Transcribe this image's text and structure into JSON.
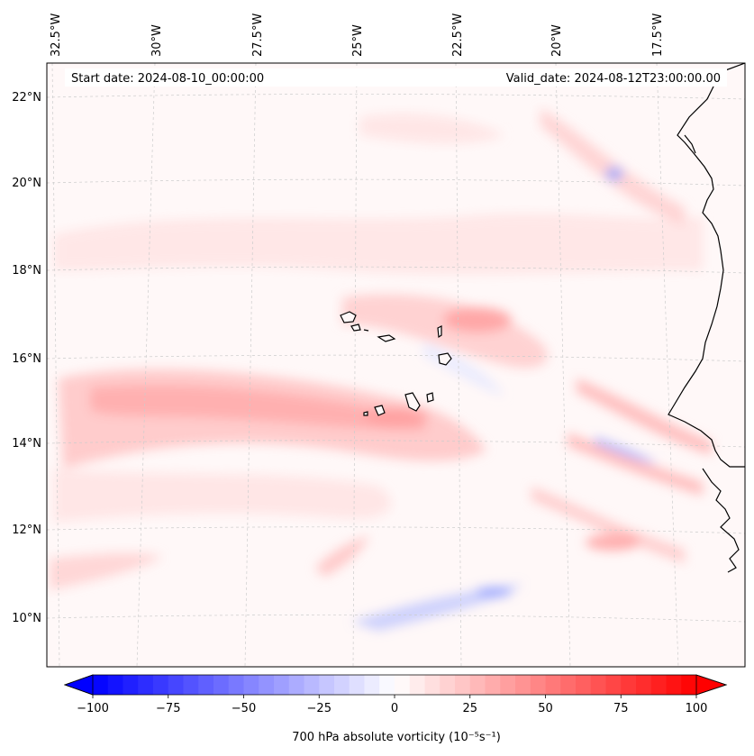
{
  "header": {
    "start_date": "Start date: 2024-08-10_00:00:00",
    "valid_date": "Valid_date: 2024-08-12T23:00:00.00"
  },
  "map": {
    "lon_labels": [
      "32.5°W",
      "30°W",
      "27.5°W",
      "25°W",
      "22.5°W",
      "20°W",
      "17.5°W"
    ],
    "lat_labels": [
      "22°N",
      "20°N",
      "18°N",
      "16°N",
      "14°N",
      "12°N",
      "10°N"
    ],
    "field_colors": {
      "positive": "#ff0000",
      "negative": "#0000ff",
      "zero": "#ffffff"
    },
    "coastline_color": "#000000"
  },
  "colorbar": {
    "ticks": [
      "−100",
      "−75",
      "−50",
      "−25",
      "0",
      "25",
      "50",
      "75",
      "100"
    ],
    "label": "700 hPa absolute vorticity (10⁻⁵s⁻¹)",
    "min": -100,
    "max": 100
  }
}
